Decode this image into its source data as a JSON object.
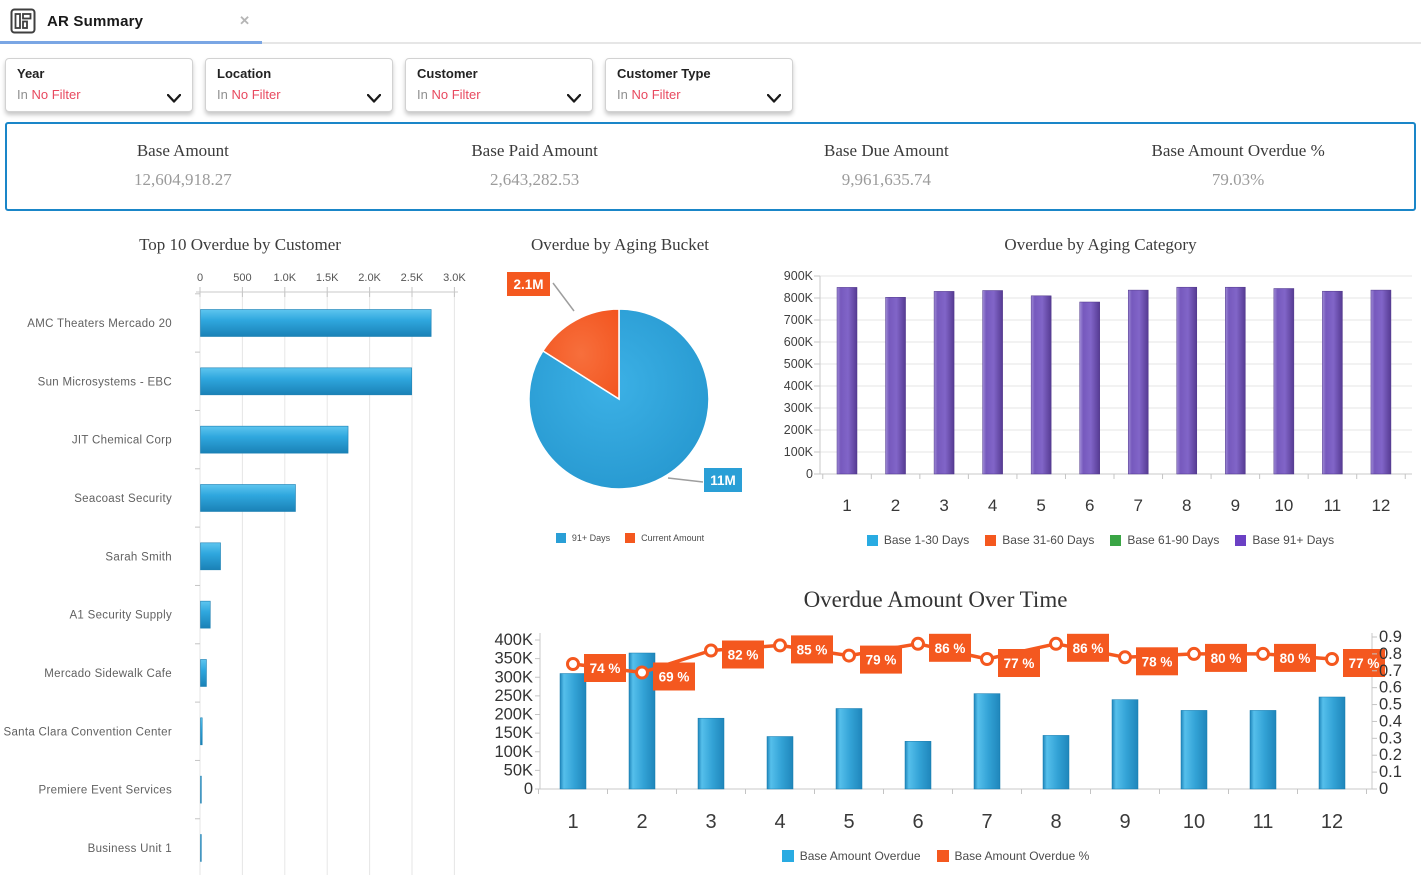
{
  "tab": {
    "title": "AR Summary",
    "close": "✕"
  },
  "filters": {
    "items": [
      {
        "label": "Year",
        "operator": "In",
        "value": "No Filter"
      },
      {
        "label": "Location",
        "operator": "In",
        "value": "No Filter"
      },
      {
        "label": "Customer",
        "operator": "In",
        "value": "No Filter"
      },
      {
        "label": "Customer Type",
        "operator": "In",
        "value": "No Filter"
      }
    ]
  },
  "kpis": {
    "items": [
      {
        "label": "Base Amount",
        "value": "12,604,918.27"
      },
      {
        "label": "Base Paid Amount",
        "value": "2,643,282.53"
      },
      {
        "label": "Base Due Amount",
        "value": "9,961,635.74"
      },
      {
        "label": "Base Amount Overdue %",
        "value": "79.03%"
      }
    ]
  },
  "colors": {
    "bar_blue": "#29a6dc",
    "accent_orange": "#f4581f",
    "bar_purple": "#7557bb",
    "legend_blue": "#29abe2",
    "legend_green": "#3aa545",
    "legend_purple": "#6b40c4",
    "filter_value_red": "#e8495f",
    "kpi_border_blue": "#1a86c8",
    "tab_underline_blue": "#7aa6e4"
  },
  "chart_data": [
    {
      "type": "bar",
      "orientation": "horizontal",
      "title": "Top 10 Overdue by Customer",
      "categories": [
        "AMC Theaters Mercado 20",
        "Sun Microsystems - EBC",
        "JIT Chemical Corp",
        "Seacoast Security",
        "Sarah Smith",
        "A1 Security Supply",
        "Mercado Sidewalk Cafe",
        "Santa Clara Convention Center",
        "Premiere Event Services",
        "Business Unit 1"
      ],
      "values": [
        2720,
        2490,
        1740,
        1120,
        236,
        115,
        70,
        20,
        10,
        4
      ],
      "xlim": [
        0,
        3050
      ],
      "xtick_labels": [
        "0",
        "500",
        "1.0K",
        "1.5K",
        "2.0K",
        "2.5K",
        "3.0K"
      ],
      "bar_color": "#29a6dc",
      "grid": true
    },
    {
      "type": "pie",
      "title": "Overdue by Aging Bucket",
      "slices": [
        {
          "name": "91+ Days",
          "value": 11000000,
          "label": "11M",
          "color": "#2a9fd6"
        },
        {
          "name": "Current Amount",
          "value": 2100000,
          "label": "2.1M",
          "color": "#f4581f"
        }
      ],
      "legend_position": "bottom"
    },
    {
      "type": "bar",
      "title": "Overdue by Aging Category",
      "categories": [
        "1",
        "2",
        "3",
        "4",
        "5",
        "6",
        "7",
        "8",
        "9",
        "10",
        "11",
        "12"
      ],
      "values": [
        848000,
        803000,
        830000,
        834000,
        810000,
        782000,
        836000,
        849000,
        849000,
        843000,
        831000,
        836000
      ],
      "ylim": [
        0,
        900000
      ],
      "ytick_labels": [
        "0",
        "100K",
        "200K",
        "300K",
        "400K",
        "500K",
        "600K",
        "700K",
        "800K",
        "900K"
      ],
      "bar_color": "#7557bb",
      "grid": true,
      "legend": [
        {
          "label": "Base 1-30 Days",
          "color": "#29abe2"
        },
        {
          "label": "Base 31-60 Days",
          "color": "#f4581f"
        },
        {
          "label": "Base 61-90 Days",
          "color": "#3aa545"
        },
        {
          "label": "Base 91+ Days",
          "color": "#6b40c4"
        }
      ],
      "legend_position": "bottom"
    },
    {
      "type": "combo",
      "title": "Overdue Amount Over Time",
      "categories": [
        "1",
        "2",
        "3",
        "4",
        "5",
        "6",
        "7",
        "8",
        "9",
        "10",
        "11",
        "12"
      ],
      "bars": {
        "name": "Base Amount Overdue",
        "color": "#29abe2",
        "values": [
          310000,
          365000,
          190000,
          141000,
          216000,
          128000,
          256000,
          144000,
          240000,
          211000,
          211000,
          247000
        ]
      },
      "line": {
        "name": "Base Amount Overdue %",
        "color": "#f4581f",
        "values": [
          0.74,
          0.69,
          0.82,
          0.85,
          0.79,
          0.86,
          0.77,
          0.86,
          0.78,
          0.8,
          0.8,
          0.77
        ],
        "labels": [
          "74 %",
          "69 %",
          "82 %",
          "85 %",
          "79 %",
          "86 %",
          "77 %",
          "86 %",
          "78 %",
          "80 %",
          "80 %",
          "77 %"
        ]
      },
      "ylim_left": [
        0,
        400000
      ],
      "ytick_labels_left": [
        "0",
        "50K",
        "100K",
        "150K",
        "200K",
        "250K",
        "300K",
        "350K",
        "400K"
      ],
      "ylim_right": [
        0,
        0.9
      ],
      "ytick_labels_right": [
        "0",
        "0.1",
        "0.2",
        "0.3",
        "0.4",
        "0.5",
        "0.6",
        "0.7",
        "0.8",
        "0.9"
      ],
      "legend": [
        {
          "label": "Base Amount Overdue",
          "color": "#29abe2"
        },
        {
          "label": "Base Amount Overdue %",
          "color": "#f4581f"
        }
      ],
      "legend_position": "bottom"
    }
  ]
}
